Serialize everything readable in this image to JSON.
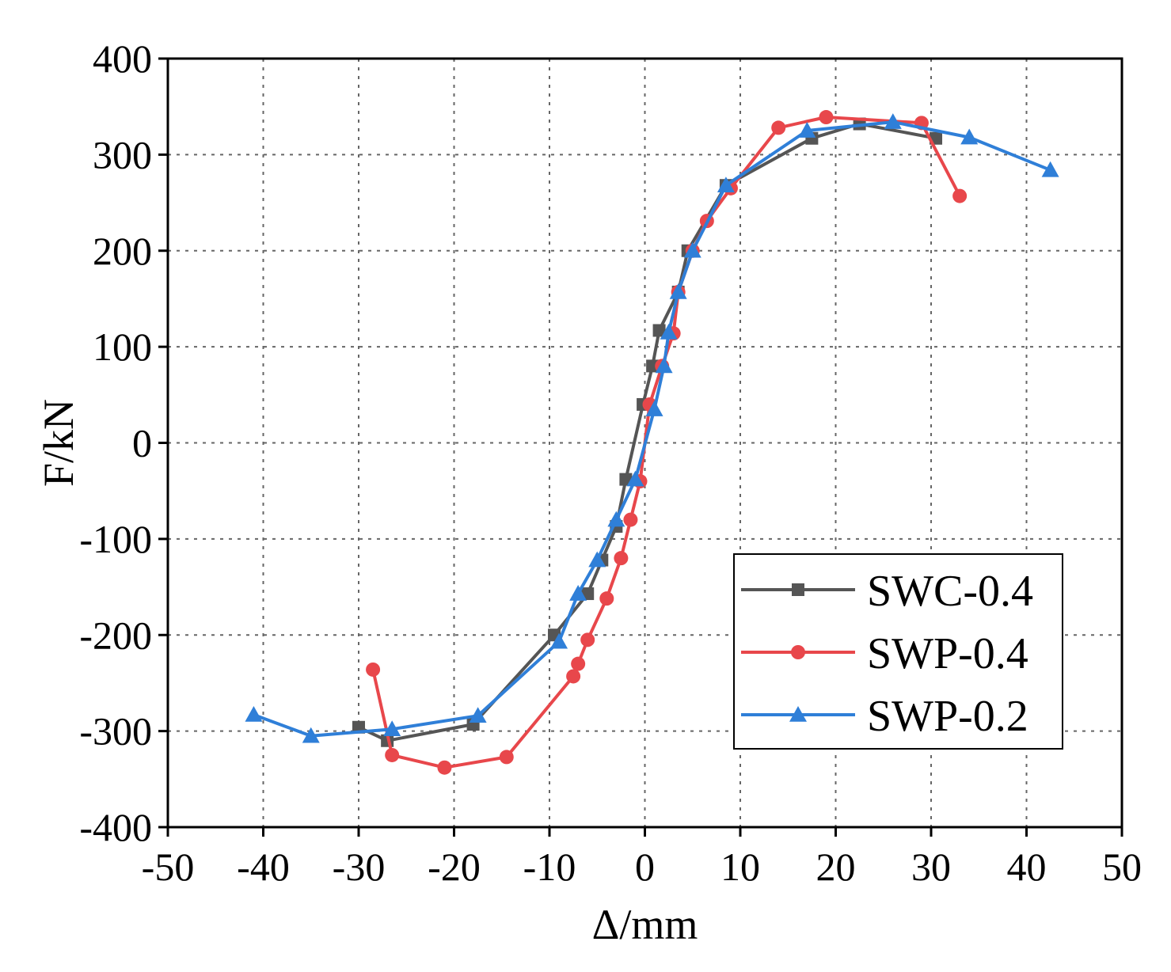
{
  "chart_data": {
    "type": "line",
    "title": "",
    "xlabel": "Δ/mm",
    "ylabel": "F/kN",
    "xlim": [
      -50,
      50
    ],
    "ylim": [
      -400,
      400
    ],
    "xticks": [
      -50,
      -40,
      -30,
      -20,
      -10,
      0,
      10,
      20,
      30,
      40,
      50
    ],
    "yticks": [
      400,
      300,
      200,
      100,
      0,
      -100,
      -200,
      -300,
      -400
    ],
    "xtick_labels": [
      "-50",
      "-40",
      "-30",
      "-20",
      "-10",
      "0",
      "10",
      "20",
      "30",
      "40",
      "50"
    ],
    "ytick_labels": [
      "400",
      "300",
      "200",
      "100",
      "0",
      "-100",
      "-200",
      "-300",
      "-400"
    ],
    "grid": true,
    "legend_position": "bottom-right",
    "series": [
      {
        "name": "SWC-0.4",
        "color": "#555555",
        "marker": "square",
        "points": [
          [
            -30,
            -296
          ],
          [
            -27,
            -310
          ],
          [
            -18,
            -293
          ],
          [
            -9.5,
            -200
          ],
          [
            -6,
            -157
          ],
          [
            -4.5,
            -122
          ],
          [
            -3,
            -87
          ],
          [
            -2,
            -38
          ],
          [
            -0.2,
            40
          ],
          [
            0.8,
            80
          ],
          [
            1.5,
            117
          ],
          [
            3.5,
            157
          ],
          [
            4.5,
            200
          ],
          [
            8.5,
            268
          ],
          [
            17.5,
            317
          ],
          [
            22.5,
            332
          ],
          [
            30.5,
            317
          ]
        ]
      },
      {
        "name": "SWP-0.4",
        "color": "#e8474b",
        "marker": "circle",
        "points": [
          [
            -28.5,
            -236
          ],
          [
            -26.5,
            -325
          ],
          [
            -21,
            -338
          ],
          [
            -14.5,
            -327
          ],
          [
            -7.5,
            -243
          ],
          [
            -7,
            -230
          ],
          [
            -6,
            -205
          ],
          [
            -4,
            -162
          ],
          [
            -2.5,
            -120
          ],
          [
            -1.5,
            -80
          ],
          [
            -0.5,
            -40
          ],
          [
            0.5,
            40
          ],
          [
            1.8,
            80
          ],
          [
            3,
            114
          ],
          [
            3.5,
            157
          ],
          [
            5,
            200
          ],
          [
            6.5,
            231
          ],
          [
            9,
            265
          ],
          [
            14,
            328
          ],
          [
            19,
            339
          ],
          [
            29,
            333
          ],
          [
            33,
            257
          ]
        ]
      },
      {
        "name": "SWP-0.2",
        "color": "#2f7fd8",
        "marker": "triangle",
        "points": [
          [
            -41,
            -283
          ],
          [
            -35,
            -305
          ],
          [
            -26.5,
            -298
          ],
          [
            -17.5,
            -284
          ],
          [
            -9,
            -207
          ],
          [
            -7,
            -157
          ],
          [
            -5,
            -122
          ],
          [
            -3,
            -80
          ],
          [
            -1,
            -38
          ],
          [
            1,
            35
          ],
          [
            2,
            80
          ],
          [
            2.5,
            115
          ],
          [
            3.5,
            157
          ],
          [
            5,
            200
          ],
          [
            8.5,
            268
          ],
          [
            17,
            325
          ],
          [
            26,
            334
          ],
          [
            34,
            318
          ],
          [
            42.5,
            284
          ]
        ]
      }
    ]
  }
}
